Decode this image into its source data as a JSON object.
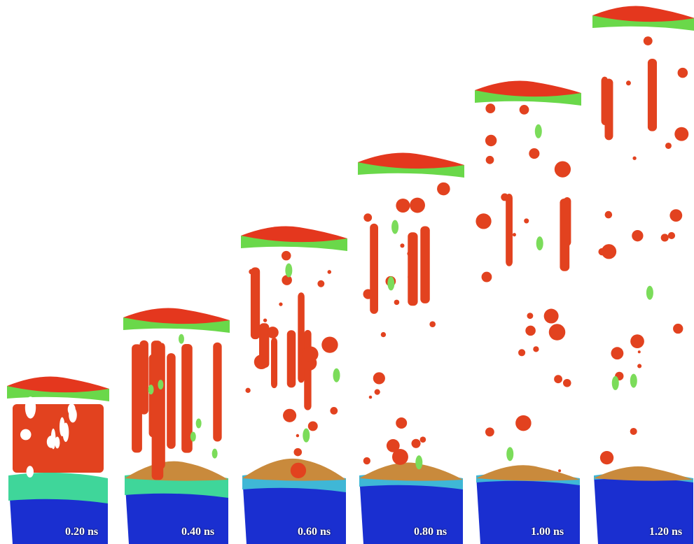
{
  "figure": {
    "colors": {
      "spall_layer_top": "#e4371e",
      "spall_layer_side": "#6ad84a",
      "ejecta": "#e2421f",
      "ejecta_solid": "#7bdc5a",
      "melt_pool": "#c98a3c",
      "liquid_layer": "#3fb7d6",
      "substrate": "#1a2fd0"
    },
    "snapshots": [
      {
        "time": "0.20 ns"
      },
      {
        "time": "0.40 ns"
      },
      {
        "time": "0.60 ns"
      },
      {
        "time": "0.80 ns"
      },
      {
        "time": "1.00 ns"
      },
      {
        "time": "1.20 ns"
      }
    ]
  }
}
